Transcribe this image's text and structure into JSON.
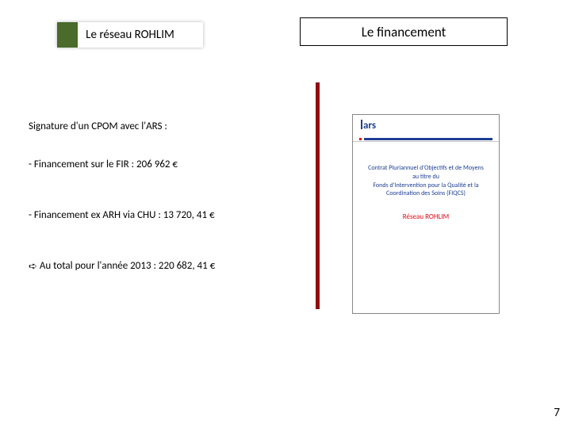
{
  "header": {
    "left_label": "Le réseau ROHLIM",
    "right_label": "Le financement"
  },
  "body": {
    "signature": "Signature d'un CPOM avec l'ARS :",
    "fir": "- Financement sur le FIR : 206 962 €",
    "arh": "- Financement ex ARH via CHU : 13 720, 41 €",
    "total_prefix": "Au total pour l'année 2013 : 220 682, 41 €",
    "arrow": "➪"
  },
  "doc": {
    "logo": "ars",
    "line1": "Contrat Pluriannuel d'Objectifs et de Moyens",
    "line2": "au titre du",
    "line3": "Fonds d'Intervention pour la Qualité et la Coordination des Soins (FIQCS)",
    "network": "Réseau ROHLIM"
  },
  "page_number": "7",
  "colors": {
    "green": "#4a6b2a",
    "red_bar": "#910b0b",
    "doc_blue": "#1d3e93",
    "doc_red": "#e30613"
  }
}
